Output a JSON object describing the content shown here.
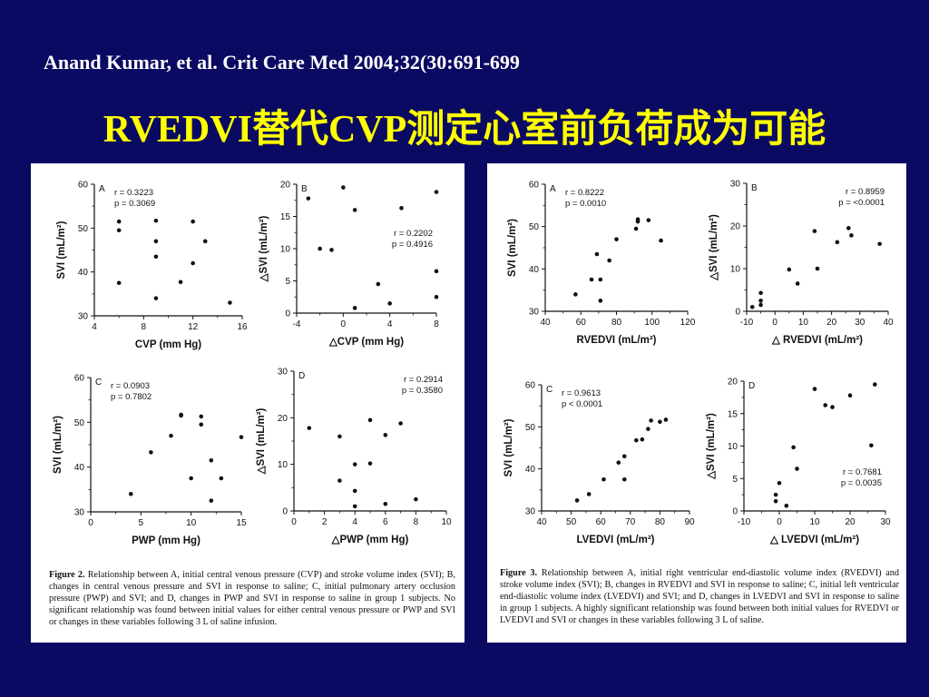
{
  "slide": {
    "citation": "Anand Kumar, et al. Crit Care Med 2004;32(30:691-699",
    "title": "RVEDVI替代CVP测定心室前负荷成为可能"
  },
  "figure2": {
    "caption_label": "Figure 2.",
    "caption": "Relationship between A, initial central venous pressure (CVP) and stroke volume index (SVI); B, changes in central venous pressure and SVI in response to saline; C, initial pulmonary artery occlusion pressure (PWP) and SVI; and D, changes in PWP and SVI in response to saline in group 1 subjects. No significant relationship was found between initial values for either central venous pressure or PWP and SVI or changes in these variables following 3 L of saline infusion."
  },
  "figure3": {
    "caption_label": "Figure 3.",
    "caption": "Relationship between A, initial right ventricular end-diastolic volume index (RVEDVI) and stroke volume index (SVI); B, changes in RVEDVI and SVI in response to saline; C, initial left ventricular end-diastolic volume index (LVEDVI) and SVI; and D, changes in LVEDVI and SVI in response to saline in group 1 subjects. A highly significant relationship was found between both initial values for RVEDVI or LVEDVI and SVI or changes in these variables following 3 L of saline."
  },
  "chart_data": [
    {
      "id": "f2a",
      "figure": 2,
      "panel": "A",
      "type": "scatter",
      "xlabel": "CVP (mm Hg)",
      "ylabel": "SVI (mL/m²)",
      "xlim": [
        4,
        16
      ],
      "ylim": [
        30,
        60
      ],
      "xticks": [
        4,
        8,
        12,
        16
      ],
      "yticks": [
        30,
        40,
        50,
        60
      ],
      "stats": [
        "r = 0.3223",
        "p = 0.3069"
      ],
      "stats_pos": "top-left",
      "points": [
        [
          6,
          51.5
        ],
        [
          6,
          49.5
        ],
        [
          6,
          37.5
        ],
        [
          9,
          51.7
        ],
        [
          9,
          47
        ],
        [
          9,
          43.5
        ],
        [
          9,
          34
        ],
        [
          11,
          37.7
        ],
        [
          12,
          51.5
        ],
        [
          12,
          42
        ],
        [
          13,
          47
        ],
        [
          15,
          33
        ]
      ]
    },
    {
      "id": "f2b",
      "figure": 2,
      "panel": "B",
      "type": "scatter",
      "xlabel": "△CVP (mm Hg)",
      "ylabel": "△SVI (mL/m²)",
      "xlim": [
        -4,
        8
      ],
      "ylim": [
        0,
        20
      ],
      "xticks": [
        -4,
        0,
        4,
        8
      ],
      "yticks": [
        0,
        5,
        10,
        15,
        20
      ],
      "stats": [
        "r = 0.2202",
        "p = 0.4916"
      ],
      "stats_pos": "middle-right",
      "points": [
        [
          -3,
          17.8
        ],
        [
          -2,
          10
        ],
        [
          -1,
          9.8
        ],
        [
          0,
          19.5
        ],
        [
          1,
          16
        ],
        [
          1,
          0.8
        ],
        [
          3,
          4.5
        ],
        [
          4,
          1.5
        ],
        [
          5,
          16.3
        ],
        [
          8,
          18.8
        ],
        [
          8,
          6.5
        ],
        [
          8,
          2.5
        ]
      ]
    },
    {
      "id": "f2c",
      "figure": 2,
      "panel": "C",
      "type": "scatter",
      "xlabel": "PWP (mm Hg)",
      "ylabel": "SVI (mL/m²)",
      "xlim": [
        0,
        15
      ],
      "ylim": [
        30,
        60
      ],
      "xticks": [
        0,
        5,
        10,
        15
      ],
      "yticks": [
        30,
        40,
        50,
        60
      ],
      "stats": [
        "r = 0.0903",
        "p = 0.7802"
      ],
      "stats_pos": "top-left",
      "points": [
        [
          4,
          34
        ],
        [
          6,
          43.3
        ],
        [
          8,
          47
        ],
        [
          9,
          51.7
        ],
        [
          9,
          51.5
        ],
        [
          10,
          37.5
        ],
        [
          11,
          51.3
        ],
        [
          11,
          49.5
        ],
        [
          12,
          41.5
        ],
        [
          12,
          32.5
        ],
        [
          13,
          37.5
        ],
        [
          15,
          46.7
        ]
      ]
    },
    {
      "id": "f2d",
      "figure": 2,
      "panel": "D",
      "type": "scatter",
      "xlabel": "△PWP (mm Hg)",
      "ylabel": "△SVI (mL/m²)",
      "xlim": [
        0,
        10
      ],
      "ylim": [
        0,
        30
      ],
      "xticks": [
        0,
        2,
        4,
        6,
        8,
        10
      ],
      "yticks": [
        0,
        10,
        20,
        30
      ],
      "stats": [
        "r = 0.2914",
        "p = 0.3580"
      ],
      "stats_pos": "top-right",
      "points": [
        [
          1,
          17.8
        ],
        [
          3,
          16
        ],
        [
          3,
          6.5
        ],
        [
          4,
          10
        ],
        [
          4,
          4.3
        ],
        [
          4,
          1
        ],
        [
          5,
          19.5
        ],
        [
          5,
          10.2
        ],
        [
          6,
          16.3
        ],
        [
          6,
          1.5
        ],
        [
          7,
          18.8
        ],
        [
          8,
          2.5
        ]
      ]
    },
    {
      "id": "f3a",
      "figure": 3,
      "panel": "A",
      "type": "scatter",
      "xlabel": "RVEDVI (mL/m²)",
      "ylabel": "SVI (mL/m²)",
      "xlim": [
        40,
        120
      ],
      "ylim": [
        30,
        60
      ],
      "xticks": [
        40,
        60,
        80,
        100,
        120
      ],
      "yticks": [
        30,
        40,
        50,
        60
      ],
      "stats": [
        "r = 0.8222",
        "p = 0.0010"
      ],
      "stats_pos": "top-left",
      "points": [
        [
          57,
          34
        ],
        [
          66,
          37.5
        ],
        [
          69,
          43.5
        ],
        [
          71,
          37.5
        ],
        [
          71,
          32.5
        ],
        [
          76,
          42
        ],
        [
          80,
          47
        ],
        [
          91,
          49.5
        ],
        [
          92,
          51.7
        ],
        [
          92,
          51.2
        ],
        [
          98,
          51.5
        ],
        [
          105,
          46.7
        ]
      ]
    },
    {
      "id": "f3b",
      "figure": 3,
      "panel": "B",
      "type": "scatter",
      "xlabel": "△ RVEDVI (mL/m²)",
      "ylabel": "△SVI (mL/m²)",
      "xlim": [
        -10,
        40
      ],
      "ylim": [
        0,
        30
      ],
      "xticks": [
        -10,
        0,
        10,
        20,
        30,
        40
      ],
      "yticks": [
        0,
        10,
        20,
        30
      ],
      "stats": [
        "r = 0.8959",
        "p = <0.0001"
      ],
      "stats_pos": "top-right",
      "points": [
        [
          -8,
          1
        ],
        [
          -5,
          4.3
        ],
        [
          -5,
          2.5
        ],
        [
          -5,
          1.5
        ],
        [
          5,
          9.8
        ],
        [
          8,
          6.5
        ],
        [
          14,
          18.8
        ],
        [
          15,
          10
        ],
        [
          22,
          16.2
        ],
        [
          26,
          19.5
        ],
        [
          27,
          17.8
        ],
        [
          37,
          15.8
        ]
      ]
    },
    {
      "id": "f3c",
      "figure": 3,
      "panel": "C",
      "type": "scatter",
      "xlabel": "LVEDVI (mL/m²)",
      "ylabel": "SVI (mL/m²)",
      "xlim": [
        40,
        90
      ],
      "ylim": [
        30,
        60
      ],
      "xticks": [
        40,
        50,
        60,
        70,
        80,
        90
      ],
      "yticks": [
        30,
        40,
        50,
        60
      ],
      "stats": [
        "r = 0.9613",
        "p < 0.0001"
      ],
      "stats_pos": "top-left",
      "points": [
        [
          52,
          32.5
        ],
        [
          56,
          34
        ],
        [
          61,
          37.5
        ],
        [
          66,
          41.5
        ],
        [
          68,
          37.5
        ],
        [
          68,
          43
        ],
        [
          72,
          46.8
        ],
        [
          74,
          47
        ],
        [
          76,
          49.5
        ],
        [
          77,
          51.5
        ],
        [
          80,
          51.2
        ],
        [
          82,
          51.7
        ]
      ]
    },
    {
      "id": "f3d",
      "figure": 3,
      "panel": "D",
      "type": "scatter",
      "xlabel": "△ LVEDVI (mL/m²)",
      "ylabel": "△SVI (mL/m²)",
      "xlim": [
        -10,
        30
      ],
      "ylim": [
        0,
        20
      ],
      "xticks": [
        -10,
        0,
        10,
        20,
        30
      ],
      "yticks": [
        0,
        5,
        10,
        15,
        20
      ],
      "stats": [
        "r = 0.7681",
        "p = 0.0035"
      ],
      "stats_pos": "bottom-right",
      "points": [
        [
          -1,
          1.5
        ],
        [
          -1,
          2.5
        ],
        [
          0,
          4.3
        ],
        [
          2,
          0.8
        ],
        [
          4,
          9.8
        ],
        [
          5,
          6.5
        ],
        [
          10,
          18.8
        ],
        [
          13,
          16.3
        ],
        [
          15,
          16
        ],
        [
          20,
          17.8
        ],
        [
          26,
          10.1
        ],
        [
          27,
          19.5
        ]
      ]
    }
  ]
}
